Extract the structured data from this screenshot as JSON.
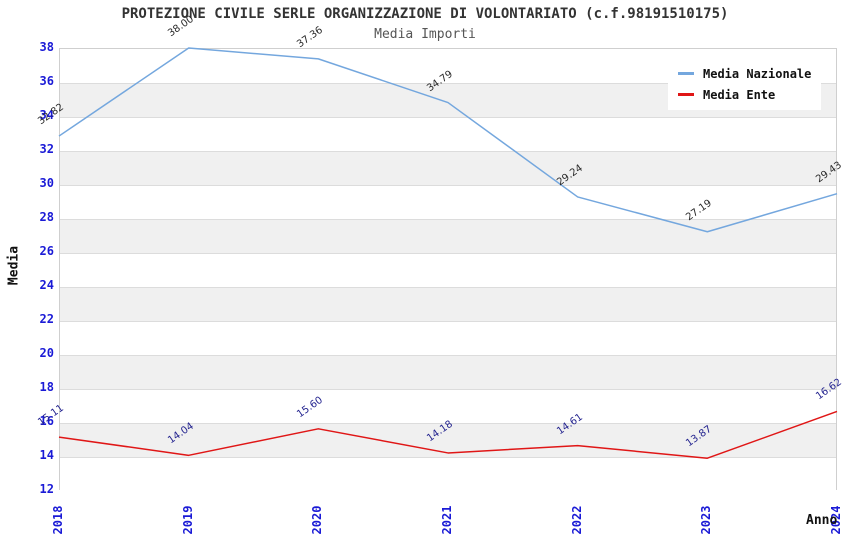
{
  "chart_data": {
    "type": "line",
    "title": "PROTEZIONE CIVILE SERLE ORGANIZZAZIONE DI VOLONTARIATO (c.f.98191510175)",
    "subtitle": "Media Importi",
    "xlabel": "Anno",
    "ylabel": "Media",
    "categories": [
      "2018",
      "2019",
      "2020",
      "2021",
      "2022",
      "2023",
      "2024"
    ],
    "ylim": [
      12,
      38
    ],
    "ytick_step": 2,
    "grid": "alternating-horizontal-bands",
    "legend_position": "top-right",
    "axis_tick_color": "#1a1ad6",
    "band_color": "#f0f0f0",
    "series": [
      {
        "name": "Media Nazionale",
        "color": "#74a7de",
        "label_color": "#2a2a2a",
        "values": [
          32.82,
          38.0,
          37.36,
          34.79,
          29.24,
          27.19,
          29.43
        ],
        "labels": [
          "32.82",
          "38.00",
          "37.36",
          "34.79",
          "29.24",
          "27.19",
          "29.43"
        ]
      },
      {
        "name": "Media Ente",
        "color": "#e01616",
        "label_color": "#23238f",
        "values": [
          15.11,
          14.04,
          15.6,
          14.18,
          14.61,
          13.87,
          16.62
        ],
        "labels": [
          "15.11",
          "14.04",
          "15.60",
          "14.18",
          "14.61",
          "13.87",
          "16.62"
        ]
      }
    ]
  }
}
